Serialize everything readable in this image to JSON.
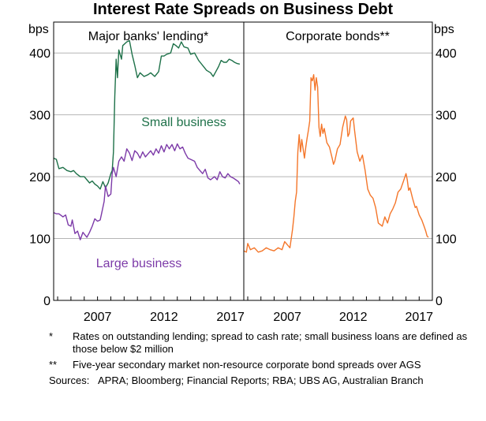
{
  "chart_data": {
    "type": "line",
    "title": "Interest Rate Spreads on Business Debt",
    "ylabel_left": "bps",
    "ylabel_right": "bps",
    "ylim": [
      0,
      450
    ],
    "yticks": [
      0,
      100,
      200,
      300,
      400
    ],
    "panels": [
      {
        "title": "Major banks' lending*",
        "xlim": [
          2003.7,
          2018.0
        ],
        "xticks": [
          2007,
          2012,
          2017
        ],
        "series": [
          {
            "name": "Small business",
            "color": "#1e7149",
            "points": [
              [
                2003.7,
                230
              ],
              [
                2003.9,
                228
              ],
              [
                2004.1,
                213
              ],
              [
                2004.4,
                215
              ],
              [
                2004.7,
                210
              ],
              [
                2005.0,
                208
              ],
              [
                2005.2,
                210
              ],
              [
                2005.4,
                205
              ],
              [
                2005.7,
                200
              ],
              [
                2006.0,
                200
              ],
              [
                2006.2,
                195
              ],
              [
                2006.4,
                190
              ],
              [
                2006.6,
                193
              ],
              [
                2006.8,
                188
              ],
              [
                2007.0,
                185
              ],
              [
                2007.2,
                180
              ],
              [
                2007.4,
                192
              ],
              [
                2007.6,
                182
              ],
              [
                2007.8,
                190
              ],
              [
                2008.0,
                205
              ],
              [
                2008.1,
                210
              ],
              [
                2008.2,
                240
              ],
              [
                2008.3,
                330
              ],
              [
                2008.4,
                390
              ],
              [
                2008.5,
                360
              ],
              [
                2008.6,
                405
              ],
              [
                2008.8,
                390
              ],
              [
                2008.9,
                412
              ],
              [
                2009.2,
                418
              ],
              [
                2009.4,
                420
              ],
              [
                2009.6,
                398
              ],
              [
                2009.8,
                380
              ],
              [
                2010.0,
                360
              ],
              [
                2010.2,
                368
              ],
              [
                2010.5,
                362
              ],
              [
                2010.8,
                365
              ],
              [
                2011.0,
                368
              ],
              [
                2011.3,
                362
              ],
              [
                2011.6,
                370
              ],
              [
                2011.8,
                395
              ],
              [
                2012.0,
                395
              ],
              [
                2012.2,
                398
              ],
              [
                2012.5,
                400
              ],
              [
                2012.7,
                415
              ],
              [
                2012.9,
                412
              ],
              [
                2013.1,
                408
              ],
              [
                2013.3,
                418
              ],
              [
                2013.5,
                410
              ],
              [
                2013.8,
                408
              ],
              [
                2014.0,
                398
              ],
              [
                2014.3,
                400
              ],
              [
                2014.6,
                388
              ],
              [
                2014.9,
                380
              ],
              [
                2015.2,
                372
              ],
              [
                2015.5,
                368
              ],
              [
                2015.7,
                362
              ],
              [
                2015.9,
                370
              ],
              [
                2016.1,
                378
              ],
              [
                2016.3,
                388
              ],
              [
                2016.5,
                385
              ],
              [
                2016.7,
                385
              ],
              [
                2016.9,
                390
              ],
              [
                2017.1,
                388
              ],
              [
                2017.3,
                385
              ],
              [
                2017.5,
                383
              ],
              [
                2017.7,
                382
              ]
            ]
          },
          {
            "name": "Large business",
            "color": "#7c3aa8",
            "points": [
              [
                2003.7,
                142
              ],
              [
                2003.9,
                140
              ],
              [
                2004.1,
                140
              ],
              [
                2004.4,
                135
              ],
              [
                2004.6,
                138
              ],
              [
                2004.8,
                122
              ],
              [
                2005.0,
                120
              ],
              [
                2005.1,
                130
              ],
              [
                2005.3,
                108
              ],
              [
                2005.5,
                112
              ],
              [
                2005.7,
                98
              ],
              [
                2005.9,
                110
              ],
              [
                2006.2,
                102
              ],
              [
                2006.4,
                110
              ],
              [
                2006.6,
                120
              ],
              [
                2006.8,
                132
              ],
              [
                2007.0,
                128
              ],
              [
                2007.2,
                130
              ],
              [
                2007.3,
                140
              ],
              [
                2007.5,
                160
              ],
              [
                2007.6,
                185
              ],
              [
                2007.8,
                168
              ],
              [
                2008.0,
                172
              ],
              [
                2008.1,
                205
              ],
              [
                2008.2,
                215
              ],
              [
                2008.4,
                200
              ],
              [
                2008.6,
                225
              ],
              [
                2008.8,
                232
              ],
              [
                2009.0,
                225
              ],
              [
                2009.2,
                245
              ],
              [
                2009.4,
                238
              ],
              [
                2009.6,
                226
              ],
              [
                2009.8,
                242
              ],
              [
                2010.0,
                238
              ],
              [
                2010.2,
                230
              ],
              [
                2010.4,
                240
              ],
              [
                2010.6,
                232
              ],
              [
                2010.8,
                237
              ],
              [
                2011.0,
                242
              ],
              [
                2011.2,
                235
              ],
              [
                2011.4,
                245
              ],
              [
                2011.6,
                238
              ],
              [
                2011.8,
                250
              ],
              [
                2012.0,
                240
              ],
              [
                2012.2,
                252
              ],
              [
                2012.4,
                245
              ],
              [
                2012.6,
                252
              ],
              [
                2012.8,
                242
              ],
              [
                2013.0,
                253
              ],
              [
                2013.2,
                245
              ],
              [
                2013.4,
                248
              ],
              [
                2013.6,
                238
              ],
              [
                2013.8,
                230
              ],
              [
                2014.0,
                228
              ],
              [
                2014.3,
                225
              ],
              [
                2014.5,
                215
              ],
              [
                2014.7,
                210
              ],
              [
                2014.9,
                205
              ],
              [
                2015.1,
                212
              ],
              [
                2015.3,
                198
              ],
              [
                2015.5,
                195
              ],
              [
                2015.8,
                200
              ],
              [
                2016.0,
                195
              ],
              [
                2016.2,
                208
              ],
              [
                2016.4,
                200
              ],
              [
                2016.6,
                198
              ],
              [
                2016.8,
                205
              ],
              [
                2017.0,
                200
              ],
              [
                2017.2,
                198
              ],
              [
                2017.4,
                195
              ],
              [
                2017.6,
                192
              ],
              [
                2017.7,
                188
              ]
            ]
          }
        ],
        "series_labels": [
          {
            "series": "Small business",
            "text": "Small business"
          },
          {
            "series": "Large business",
            "text": "Large business"
          }
        ]
      },
      {
        "title": "Corporate bonds**",
        "xlim": [
          2003.7,
          2018.0
        ],
        "xticks": [
          2007,
          2012,
          2017
        ],
        "series": [
          {
            "name": "Corporate bonds",
            "color": "#f4762a",
            "points": [
              [
                2003.7,
                80
              ],
              [
                2003.9,
                78
              ],
              [
                2004.0,
                92
              ],
              [
                2004.2,
                82
              ],
              [
                2004.5,
                85
              ],
              [
                2004.8,
                78
              ],
              [
                2005.1,
                80
              ],
              [
                2005.4,
                85
              ],
              [
                2005.7,
                82
              ],
              [
                2006.0,
                80
              ],
              [
                2006.3,
                85
              ],
              [
                2006.6,
                82
              ],
              [
                2006.8,
                95
              ],
              [
                2007.0,
                90
              ],
              [
                2007.2,
                85
              ],
              [
                2007.4,
                115
              ],
              [
                2007.5,
                135
              ],
              [
                2007.6,
                160
              ],
              [
                2007.7,
                175
              ],
              [
                2007.8,
                240
              ],
              [
                2007.9,
                268
              ],
              [
                2008.0,
                240
              ],
              [
                2008.1,
                260
              ],
              [
                2008.3,
                230
              ],
              [
                2008.4,
                248
              ],
              [
                2008.5,
                262
              ],
              [
                2008.6,
                275
              ],
              [
                2008.7,
                290
              ],
              [
                2008.8,
                360
              ],
              [
                2008.9,
                355
              ],
              [
                2009.0,
                365
              ],
              [
                2009.1,
                340
              ],
              [
                2009.2,
                360
              ],
              [
                2009.3,
                345
              ],
              [
                2009.4,
                280
              ],
              [
                2009.5,
                265
              ],
              [
                2009.6,
                285
              ],
              [
                2009.7,
                270
              ],
              [
                2009.8,
                278
              ],
              [
                2010.0,
                255
              ],
              [
                2010.2,
                248
              ],
              [
                2010.4,
                230
              ],
              [
                2010.5,
                220
              ],
              [
                2010.6,
                225
              ],
              [
                2010.8,
                245
              ],
              [
                2011.0,
                252
              ],
              [
                2011.2,
                280
              ],
              [
                2011.4,
                298
              ],
              [
                2011.5,
                292
              ],
              [
                2011.6,
                265
              ],
              [
                2011.7,
                270
              ],
              [
                2011.8,
                290
              ],
              [
                2012.0,
                295
              ],
              [
                2012.1,
                275
              ],
              [
                2012.3,
                240
              ],
              [
                2012.5,
                225
              ],
              [
                2012.7,
                235
              ],
              [
                2012.9,
                210
              ],
              [
                2013.1,
                180
              ],
              [
                2013.3,
                170
              ],
              [
                2013.5,
                165
              ],
              [
                2013.7,
                150
              ],
              [
                2013.9,
                125
              ],
              [
                2014.2,
                120
              ],
              [
                2014.4,
                135
              ],
              [
                2014.6,
                125
              ],
              [
                2014.8,
                140
              ],
              [
                2015.0,
                148
              ],
              [
                2015.2,
                158
              ],
              [
                2015.4,
                175
              ],
              [
                2015.6,
                180
              ],
              [
                2015.8,
                192
              ],
              [
                2016.0,
                205
              ],
              [
                2016.1,
                195
              ],
              [
                2016.2,
                178
              ],
              [
                2016.3,
                182
              ],
              [
                2016.5,
                165
              ],
              [
                2016.7,
                150
              ],
              [
                2016.8,
                152
              ],
              [
                2017.0,
                138
              ],
              [
                2017.2,
                130
              ],
              [
                2017.4,
                118
              ],
              [
                2017.5,
                112
              ],
              [
                2017.6,
                104
              ],
              [
                2017.7,
                102
              ]
            ]
          }
        ],
        "series_labels": []
      }
    ]
  },
  "footnotes": [
    {
      "mark": "*",
      "text": "Rates on outstanding lending; spread to cash rate; small business loans are defined as those below $2 million"
    },
    {
      "mark": "**",
      "text": "Five-year secondary market non-resource corporate bond spreads over AGS"
    }
  ],
  "sources": {
    "label": "Sources:",
    "text": "APRA; Bloomberg; Financial Reports; RBA; UBS AG, Australian Branch"
  }
}
